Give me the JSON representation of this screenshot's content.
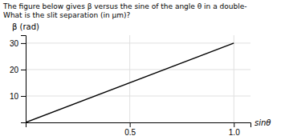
{
  "chart_data": {
    "type": "line",
    "title": "The figure below gives β versus the sine of the angle θ in a double-",
    "subtitle": "What is the slit separation (in μm)?",
    "xlabel": "sinθ",
    "ylabel": "β (rad)",
    "x": [
      0,
      1
    ],
    "values": [
      0,
      30
    ],
    "color": "#000000",
    "xlim": [
      0,
      1.08
    ],
    "ylim": [
      0,
      33
    ],
    "xticks": [
      0.5,
      {
        "value": 1,
        "label": "1.0"
      }
    ],
    "yticks": [
      10.0,
      20.0,
      30.0
    ],
    "grid": true
  }
}
